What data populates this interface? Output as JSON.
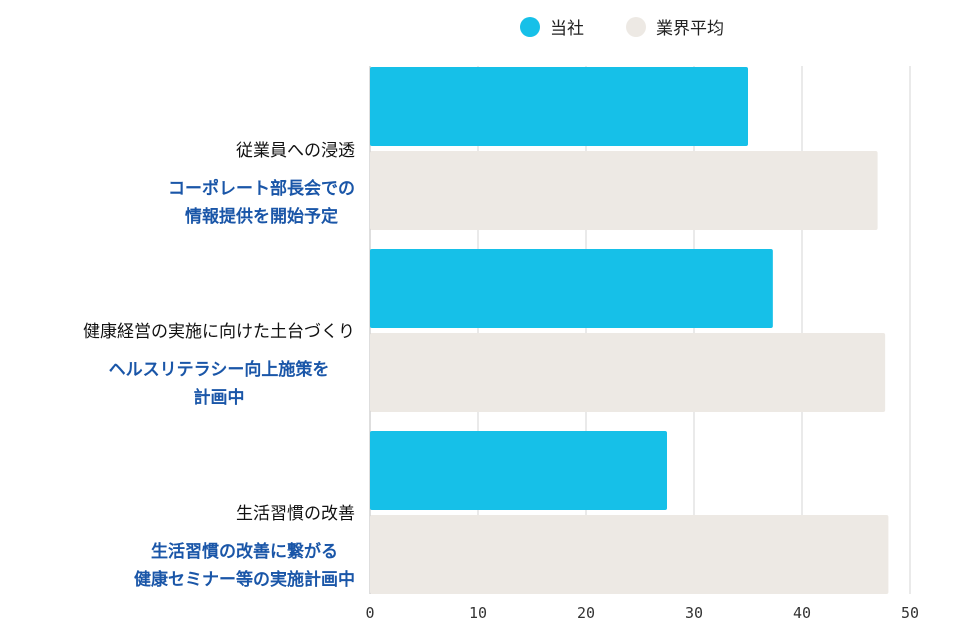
{
  "colors": {
    "company": "#16c0e8",
    "average": "#ede9e4",
    "grid": "#d6d6d6",
    "note": "#1a56a8"
  },
  "legend": [
    {
      "label": "当社",
      "color": "#16c0e8"
    },
    {
      "label": "業界平均",
      "color": "#ede9e4"
    }
  ],
  "chart_data": {
    "type": "bar",
    "orientation": "horizontal",
    "categories": [
      "従業員への浸透",
      "健康経営の実施に向けた土台づくり",
      "生活習慣の改善"
    ],
    "annotations": [
      [
        "コーポレート部長会での",
        "情報提供を開始予定"
      ],
      [
        "ヘルスリテラシー向上施策を",
        "計画中"
      ],
      [
        "生活習慣の改善に繋がる",
        "健康セミナー等の実施計画中"
      ]
    ],
    "series": [
      {
        "name": "当社",
        "values": [
          35,
          37.3,
          27.5
        ]
      },
      {
        "name": "業界平均",
        "values": [
          47,
          47.7,
          48
        ]
      }
    ],
    "xticks": [
      "0",
      "10",
      "20",
      "30",
      "40",
      "50"
    ],
    "xlim": [
      0,
      50
    ],
    "grid": true,
    "legend_position": "top"
  }
}
